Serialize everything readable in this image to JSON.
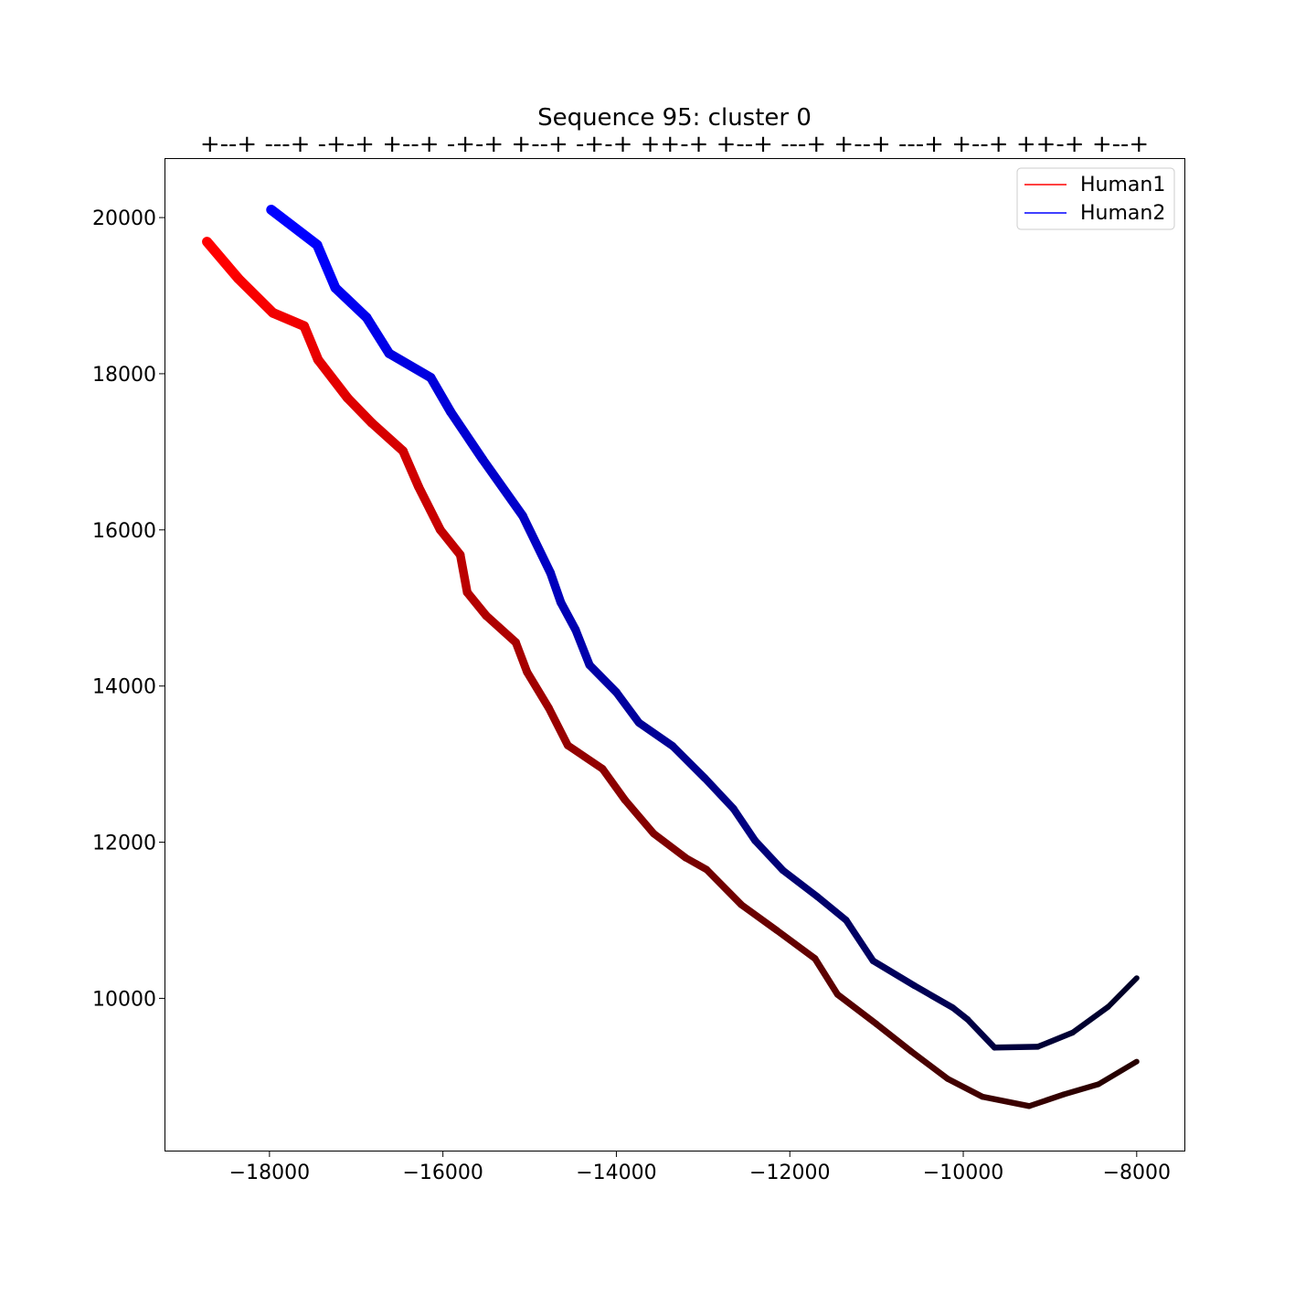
{
  "chart_data": {
    "type": "line",
    "title": "Sequence 95: cluster 0",
    "subtitle": "+--+ ---+ -+-+ +--+ -+-+ +--+ -+-+ ++-+ +--+ ---+ +--+ ---+ +--+ ++-+ +--+",
    "xlabel": "",
    "ylabel": "",
    "xlim": [
      -19200,
      -7450
    ],
    "ylim": [
      8050,
      20750
    ],
    "x_ticks": [
      -18000,
      -16000,
      -14000,
      -12000,
      -10000,
      -8000
    ],
    "x_tick_labels": [
      "−18000",
      "−16000",
      "−14000",
      "−12000",
      "−10000",
      "−8000"
    ],
    "y_ticks": [
      10000,
      12000,
      14000,
      16000,
      18000,
      20000
    ],
    "y_tick_labels": [
      "10000",
      "12000",
      "14000",
      "16000",
      "18000",
      "20000"
    ],
    "grid": false,
    "legend_position": "top-right",
    "series": [
      {
        "name": "Human1",
        "color": "#ff0000",
        "color_end": "#000000",
        "points": [
          [
            -18720,
            19690
          ],
          [
            -18360,
            19220
          ],
          [
            -17960,
            18780
          ],
          [
            -17600,
            18610
          ],
          [
            -17440,
            18180
          ],
          [
            -17100,
            17690
          ],
          [
            -16820,
            17370
          ],
          [
            -16460,
            17010
          ],
          [
            -16280,
            16550
          ],
          [
            -16030,
            16000
          ],
          [
            -15800,
            15680
          ],
          [
            -15720,
            15200
          ],
          [
            -15500,
            14900
          ],
          [
            -15160,
            14560
          ],
          [
            -15030,
            14180
          ],
          [
            -14780,
            13720
          ],
          [
            -14560,
            13240
          ],
          [
            -14160,
            12940
          ],
          [
            -13900,
            12540
          ],
          [
            -13570,
            12110
          ],
          [
            -13200,
            11800
          ],
          [
            -12960,
            11650
          ],
          [
            -12560,
            11200
          ],
          [
            -12150,
            10870
          ],
          [
            -11710,
            10510
          ],
          [
            -11450,
            10050
          ],
          [
            -11000,
            9670
          ],
          [
            -10600,
            9320
          ],
          [
            -10180,
            8970
          ],
          [
            -9780,
            8740
          ],
          [
            -9240,
            8620
          ],
          [
            -8840,
            8770
          ],
          [
            -8440,
            8900
          ],
          [
            -8000,
            9190
          ]
        ]
      },
      {
        "name": "Human2",
        "color": "#0000ff",
        "color_end": "#000000",
        "points": [
          [
            -17980,
            20100
          ],
          [
            -17450,
            19650
          ],
          [
            -17240,
            19100
          ],
          [
            -16880,
            18720
          ],
          [
            -16620,
            18260
          ],
          [
            -16140,
            17950
          ],
          [
            -15910,
            17510
          ],
          [
            -15540,
            16900
          ],
          [
            -15080,
            16180
          ],
          [
            -14760,
            15450
          ],
          [
            -14640,
            15070
          ],
          [
            -14470,
            14720
          ],
          [
            -14310,
            14270
          ],
          [
            -14000,
            13920
          ],
          [
            -13740,
            13530
          ],
          [
            -13350,
            13230
          ],
          [
            -12980,
            12820
          ],
          [
            -12650,
            12430
          ],
          [
            -12400,
            12020
          ],
          [
            -12080,
            11640
          ],
          [
            -11680,
            11300
          ],
          [
            -11350,
            11000
          ],
          [
            -11040,
            10480
          ],
          [
            -10560,
            10160
          ],
          [
            -10120,
            9880
          ],
          [
            -9950,
            9730
          ],
          [
            -9640,
            9370
          ],
          [
            -9140,
            9380
          ],
          [
            -8740,
            9560
          ],
          [
            -8330,
            9890
          ],
          [
            -8000,
            10260
          ]
        ]
      }
    ]
  }
}
